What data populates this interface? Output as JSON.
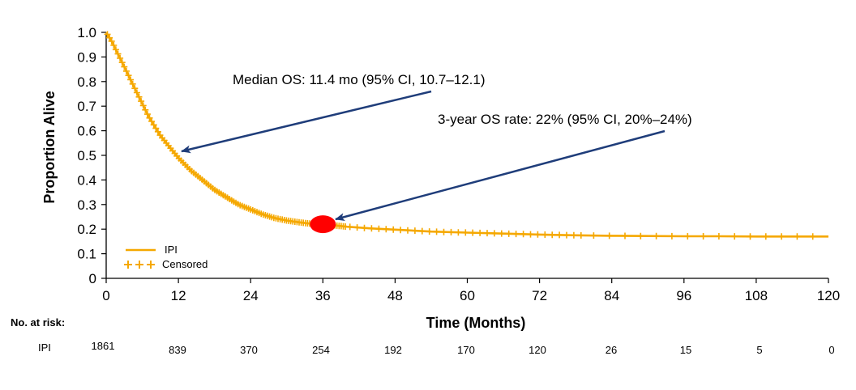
{
  "chart_data": {
    "type": "line",
    "xlabel": "Time (Months)",
    "ylabel": "Proportion Alive",
    "xlim": [
      0,
      120
    ],
    "ylim": [
      0,
      1.0
    ],
    "x_ticks": [
      0,
      12,
      24,
      36,
      48,
      60,
      72,
      84,
      96,
      108,
      120
    ],
    "x_tick_labels": [
      "0",
      "12",
      "24",
      "36",
      "48",
      "60",
      "72",
      "84",
      "96",
      "108",
      "120"
    ],
    "y_ticks": [
      0,
      0.1,
      0.2,
      0.3,
      0.4,
      0.5,
      0.6,
      0.7,
      0.8,
      0.9,
      1.0
    ],
    "y_tick_labels": [
      "0",
      "0.1",
      "0.2",
      "0.3",
      "0.4",
      "0.5",
      "0.6",
      "0.7",
      "0.8",
      "0.9",
      "1.0"
    ],
    "grid": false,
    "legend_position": "bottom-left",
    "series": [
      {
        "name": "IPI",
        "color": "#F5A800",
        "x": [
          0,
          1,
          2,
          3,
          4,
          5,
          6,
          7,
          8,
          9,
          10,
          11,
          12,
          14,
          16,
          18,
          20,
          22,
          24,
          26,
          28,
          30,
          32,
          34,
          36,
          40,
          44,
          48,
          54,
          60,
          66,
          72,
          78,
          84,
          90,
          96,
          102,
          108,
          114,
          120
        ],
        "y": [
          1.0,
          0.96,
          0.91,
          0.86,
          0.81,
          0.76,
          0.71,
          0.66,
          0.62,
          0.58,
          0.55,
          0.52,
          0.49,
          0.44,
          0.4,
          0.36,
          0.33,
          0.3,
          0.28,
          0.26,
          0.245,
          0.235,
          0.228,
          0.222,
          0.22,
          0.21,
          0.203,
          0.198,
          0.19,
          0.186,
          0.182,
          0.178,
          0.175,
          0.173,
          0.172,
          0.171,
          0.171,
          0.17,
          0.17,
          0.17
        ]
      }
    ],
    "censored_label": "Censored",
    "highlight_point": {
      "x": 36,
      "y": 0.22,
      "color": "#FF0000"
    },
    "annotations": [
      {
        "text": "Median OS: 11.4 mo (95% CI, 10.7–12.1)",
        "target_x": 11.4,
        "target_y": 0.5
      },
      {
        "text": "3-year OS rate: 22% (95% CI, 20%–24%)",
        "target_x": 36,
        "target_y": 0.22
      }
    ],
    "risk_table": {
      "title": "No. at risk:",
      "row_label": "IPI",
      "values": [
        "1861",
        "839",
        "370",
        "254",
        "192",
        "170",
        "120",
        "26",
        "15",
        "5",
        "0"
      ]
    }
  }
}
